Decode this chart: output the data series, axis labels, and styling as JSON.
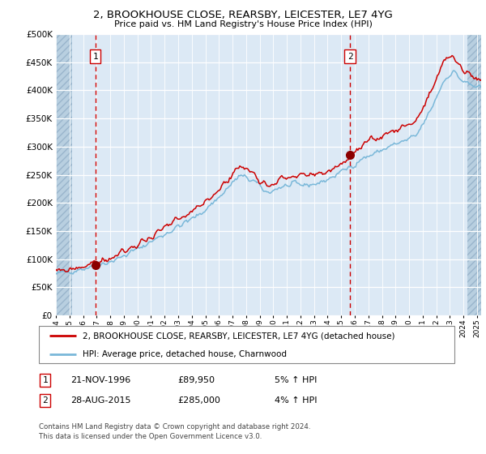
{
  "title1": "2, BROOKHOUSE CLOSE, REARSBY, LEICESTER, LE7 4YG",
  "title2": "Price paid vs. HM Land Registry's House Price Index (HPI)",
  "legend_line1": "2, BROOKHOUSE CLOSE, REARSBY, LEICESTER, LE7 4YG (detached house)",
  "legend_line2": "HPI: Average price, detached house, Charnwood",
  "annotation1_date": "21-NOV-1996",
  "annotation1_price": "£89,950",
  "annotation1_hpi": "5% ↑ HPI",
  "annotation2_date": "28-AUG-2015",
  "annotation2_price": "£285,000",
  "annotation2_hpi": "4% ↑ HPI",
  "footnote": "Contains HM Land Registry data © Crown copyright and database right 2024.\nThis data is licensed under the Open Government Licence v3.0.",
  "hpi_color": "#7ab8d9",
  "price_color": "#cc0000",
  "dot_color": "#8b0000",
  "vline_color": "#cc0000",
  "bg_color": "#dce9f5",
  "hatch_color": "#b8cfe0",
  "grid_color": "#ffffff",
  "ylim": [
    0,
    500000
  ],
  "yticks": [
    0,
    50000,
    100000,
    150000,
    200000,
    250000,
    300000,
    350000,
    400000,
    450000,
    500000
  ],
  "purchase1_x": 1996.9,
  "purchase1_y": 89950,
  "purchase2_x": 2015.65,
  "purchase2_y": 285000,
  "xmin": 1994,
  "xmax": 2025.3
}
